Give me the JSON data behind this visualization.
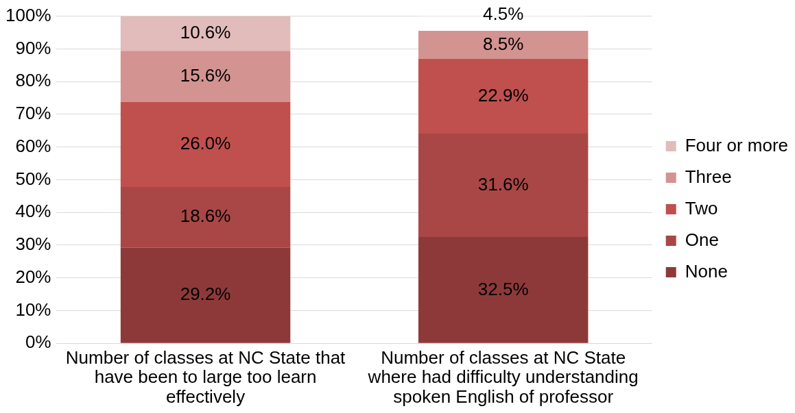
{
  "chart_data": {
    "type": "bar",
    "stacked": true,
    "categories": [
      "Number of classes at NC State that have been to large too learn effectively",
      "Number of classes at NC State where had difficulty understanding spoken English of professor"
    ],
    "series": [
      {
        "name": "None",
        "color": "#8e3939",
        "values": [
          29.2,
          32.5
        ],
        "value_labels": [
          "29.2%",
          "32.5%"
        ]
      },
      {
        "name": "One",
        "color": "#a94746",
        "values": [
          18.6,
          31.6
        ],
        "value_labels": [
          "18.6%",
          "31.6%"
        ]
      },
      {
        "name": "Two",
        "color": "#c0504d",
        "values": [
          26.0,
          22.9
        ],
        "value_labels": [
          "26.0%",
          "22.9%"
        ]
      },
      {
        "name": "Three",
        "color": "#d39391",
        "values": [
          15.6,
          8.5
        ],
        "value_labels": [
          "15.6%",
          "8.5%"
        ]
      },
      {
        "name": "Four or more",
        "color": "#e2bbbb",
        "colors": [
          "#e2bbbb",
          "#ffffff"
        ],
        "values": [
          10.6,
          4.5
        ],
        "value_labels": [
          "10.6%",
          "4.5%"
        ]
      }
    ],
    "ylim": [
      0,
      100
    ],
    "yticks": [
      {
        "value": 0,
        "label": "0%"
      },
      {
        "value": 10,
        "label": "10%"
      },
      {
        "value": 20,
        "label": "20%"
      },
      {
        "value": 30,
        "label": "30%"
      },
      {
        "value": 40,
        "label": "40%"
      },
      {
        "value": 50,
        "label": "50%"
      },
      {
        "value": 60,
        "label": "60%"
      },
      {
        "value": 70,
        "label": "70%"
      },
      {
        "value": 80,
        "label": "80%"
      },
      {
        "value": 90,
        "label": "90%"
      },
      {
        "value": 100,
        "label": "100%"
      }
    ],
    "grid": "y",
    "legend": "right"
  }
}
